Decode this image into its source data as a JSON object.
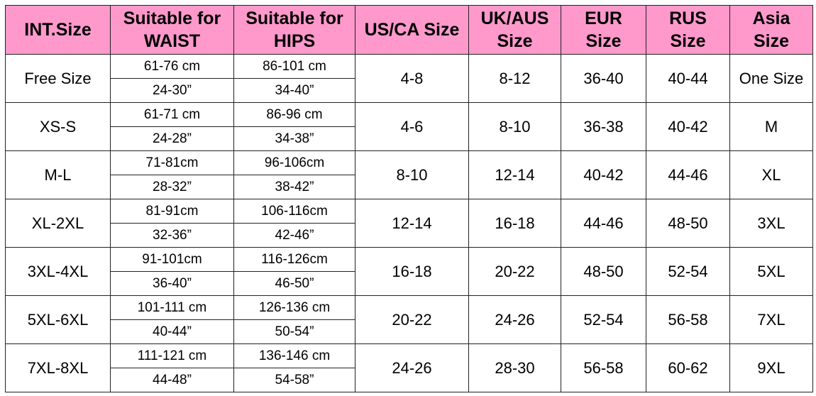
{
  "table": {
    "header": [
      [
        "INT.Size"
      ],
      [
        "Suitable for",
        "WAIST"
      ],
      [
        "Suitable for",
        "HIPS"
      ],
      [
        "US/CA Size"
      ],
      [
        "UK/AUS",
        "Size"
      ],
      [
        "EUR",
        "Size"
      ],
      [
        "RUS",
        "Size"
      ],
      [
        "Asia",
        "Size"
      ]
    ],
    "rows": [
      {
        "size": "Free Size",
        "waist": [
          "61-76 cm",
          "24-30”"
        ],
        "hips": [
          "86-101 cm",
          "34-40”"
        ],
        "us": "4-8",
        "uk": "8-12",
        "eur": "36-40",
        "rus": "40-44",
        "asia": "One Size"
      },
      {
        "size": "XS-S",
        "waist": [
          "61-71 cm",
          "24-28”"
        ],
        "hips": [
          "86-96 cm",
          "34-38”"
        ],
        "us": "4-6",
        "uk": "8-10",
        "eur": "36-38",
        "rus": "40-42",
        "asia": "M"
      },
      {
        "size": "M-L",
        "waist": [
          "71-81cm",
          "28-32”"
        ],
        "hips": [
          "96-106cm",
          "38-42”"
        ],
        "us": "8-10",
        "uk": "12-14",
        "eur": "40-42",
        "rus": "44-46",
        "asia": "XL"
      },
      {
        "size": "XL-2XL",
        "waist": [
          "81-91cm",
          "32-36”"
        ],
        "hips": [
          "106-116cm",
          "42-46”"
        ],
        "us": "12-14",
        "uk": "16-18",
        "eur": "44-46",
        "rus": "48-50",
        "asia": "3XL"
      },
      {
        "size": "3XL-4XL",
        "waist": [
          "91-101cm",
          "36-40”"
        ],
        "hips": [
          "116-126cm",
          "46-50”"
        ],
        "us": "16-18",
        "uk": "20-22",
        "eur": "48-50",
        "rus": "52-54",
        "asia": "5XL"
      },
      {
        "size": "5XL-6XL",
        "waist": [
          "101-111 cm",
          "40-44”"
        ],
        "hips": [
          "126-136 cm",
          "50-54”"
        ],
        "us": "20-22",
        "uk": "24-26",
        "eur": "52-54",
        "rus": "56-58",
        "asia": "7XL"
      },
      {
        "size": "7XL-8XL",
        "waist": [
          "111-121 cm",
          "44-48”"
        ],
        "hips": [
          "136-146 cm",
          "54-58”"
        ],
        "us": "24-26",
        "uk": "28-30",
        "eur": "56-58",
        "rus": "60-62",
        "asia": "9XL"
      }
    ]
  }
}
